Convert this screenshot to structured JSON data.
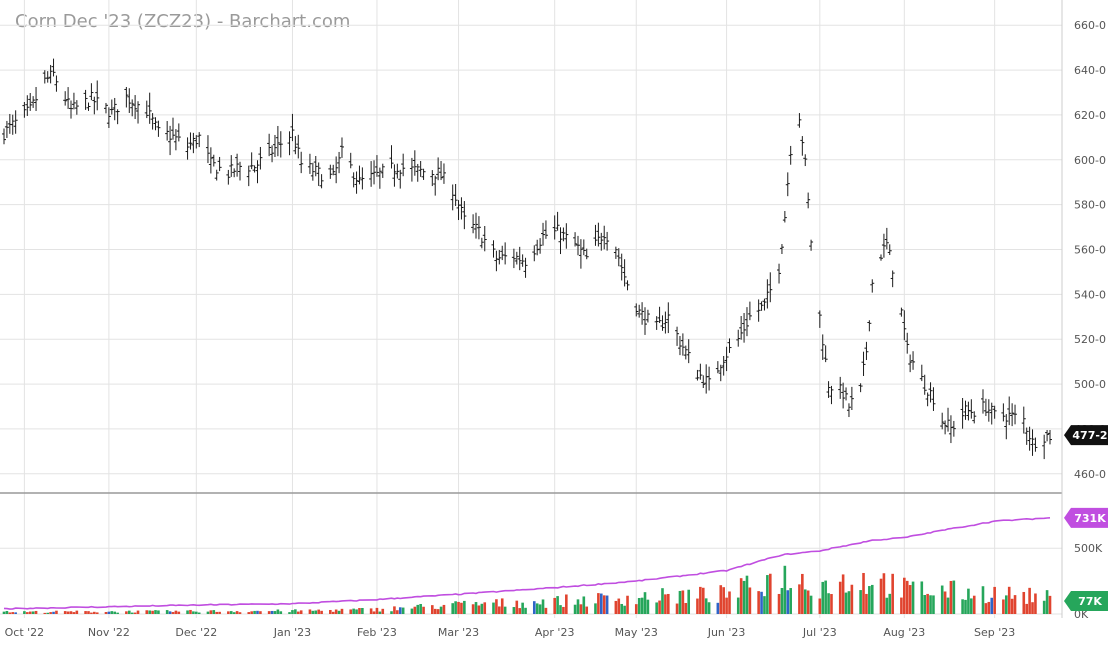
{
  "colors": {
    "price_bar": "#1a1a1a",
    "grid": "#e3e3e3",
    "pane_divider": "#999999",
    "volume_up": "#26a65b",
    "volume_down": "#e0442f",
    "volume_neutral": "#2f64c8",
    "open_interest": "#c04ee0",
    "last_price_badge": "#111111"
  },
  "chart_data": {
    "type": "ohlc",
    "title": "Corn Dec '23 (ZCZ23) - Barchart.com",
    "price_axis": {
      "range": [
        455,
        665
      ],
      "ticks": [
        {
          "value": 460,
          "label": "460-0"
        },
        {
          "value": 480,
          "label": "480-0"
        },
        {
          "value": 500,
          "label": "500-0"
        },
        {
          "value": 520,
          "label": "520-0"
        },
        {
          "value": 540,
          "label": "540-0"
        },
        {
          "value": 560,
          "label": "560-0"
        },
        {
          "value": 580,
          "label": "580-0"
        },
        {
          "value": 600,
          "label": "600-0"
        },
        {
          "value": 620,
          "label": "620-0"
        },
        {
          "value": 640,
          "label": "640-0"
        },
        {
          "value": 660,
          "label": "660-0"
        }
      ],
      "last_price": {
        "value": 477.25,
        "label": "477-2"
      }
    },
    "time_axis": {
      "first_date": "2022-09-26",
      "last_date": "2023-09-20",
      "months": [
        {
          "date": "2022-10-03",
          "label": "Oct '22"
        },
        {
          "date": "2022-11-01",
          "label": "Nov '22"
        },
        {
          "date": "2022-12-01",
          "label": "Dec '22"
        },
        {
          "date": "2023-01-03",
          "label": "Jan '23"
        },
        {
          "date": "2023-02-01",
          "label": "Feb '23"
        },
        {
          "date": "2023-03-01",
          "label": "Mar '23"
        },
        {
          "date": "2023-04-03",
          "label": "Apr '23"
        },
        {
          "date": "2023-05-01",
          "label": "May '23"
        },
        {
          "date": "2023-06-01",
          "label": "Jun '23"
        },
        {
          "date": "2023-07-03",
          "label": "Jul '23"
        },
        {
          "date": "2023-08-01",
          "label": "Aug '23"
        },
        {
          "date": "2023-09-01",
          "label": "Sep '23"
        }
      ]
    },
    "price_path": [
      [
        "2022-09-26",
        612
      ],
      [
        "2022-10-05",
        622
      ],
      [
        "2022-10-10",
        635
      ],
      [
        "2022-10-13",
        638
      ],
      [
        "2022-10-19",
        622
      ],
      [
        "2022-10-26",
        627
      ],
      [
        "2022-11-02",
        621
      ],
      [
        "2022-11-07",
        628
      ],
      [
        "2022-11-14",
        622
      ],
      [
        "2022-11-18",
        612
      ],
      [
        "2022-11-22",
        611
      ],
      [
        "2022-11-28",
        606
      ],
      [
        "2022-12-02",
        610
      ],
      [
        "2022-12-06",
        598
      ],
      [
        "2022-12-12",
        594
      ],
      [
        "2022-12-16",
        597
      ],
      [
        "2022-12-21",
        597
      ],
      [
        "2022-12-28",
        605
      ],
      [
        "2023-01-03",
        612
      ],
      [
        "2023-01-06",
        598
      ],
      [
        "2023-01-12",
        594
      ],
      [
        "2023-01-17",
        592
      ],
      [
        "2023-01-20",
        603
      ],
      [
        "2023-01-26",
        590
      ],
      [
        "2023-02-01",
        593
      ],
      [
        "2023-02-08",
        597
      ],
      [
        "2023-02-15",
        595
      ],
      [
        "2023-02-22",
        594
      ],
      [
        "2023-02-27",
        587
      ],
      [
        "2023-03-03",
        573
      ],
      [
        "2023-03-08",
        568
      ],
      [
        "2023-03-14",
        556
      ],
      [
        "2023-03-20",
        557
      ],
      [
        "2023-03-24",
        555
      ],
      [
        "2023-03-30",
        566
      ],
      [
        "2023-04-04",
        568
      ],
      [
        "2023-04-10",
        562
      ],
      [
        "2023-04-14",
        556
      ],
      [
        "2023-04-20",
        568
      ],
      [
        "2023-04-24",
        561
      ],
      [
        "2023-04-27",
        548
      ],
      [
        "2023-05-02",
        532
      ],
      [
        "2023-05-08",
        525
      ],
      [
        "2023-05-12",
        530
      ],
      [
        "2023-05-16",
        519
      ],
      [
        "2023-05-22",
        505
      ],
      [
        "2023-05-26",
        500
      ],
      [
        "2023-05-31",
        512
      ],
      [
        "2023-06-05",
        520
      ],
      [
        "2023-06-09",
        530
      ],
      [
        "2023-06-14",
        535
      ],
      [
        "2023-06-19",
        552
      ],
      [
        "2023-06-21",
        575
      ],
      [
        "2023-06-23",
        605
      ],
      [
        "2023-06-26",
        620
      ],
      [
        "2023-06-28",
        598
      ],
      [
        "2023-06-30",
        564
      ],
      [
        "2023-07-03",
        530
      ],
      [
        "2023-07-06",
        500
      ],
      [
        "2023-07-11",
        496
      ],
      [
        "2023-07-13",
        490
      ],
      [
        "2023-07-17",
        497
      ],
      [
        "2023-07-19",
        515
      ],
      [
        "2023-07-21",
        545
      ],
      [
        "2023-07-24",
        558
      ],
      [
        "2023-07-26",
        562
      ],
      [
        "2023-07-28",
        552
      ],
      [
        "2023-07-31",
        532
      ],
      [
        "2023-08-02",
        515
      ],
      [
        "2023-08-07",
        502
      ],
      [
        "2023-08-11",
        494
      ],
      [
        "2023-08-14",
        484
      ],
      [
        "2023-08-17",
        480
      ],
      [
        "2023-08-22",
        488
      ],
      [
        "2023-08-25",
        488
      ],
      [
        "2023-08-29",
        490
      ],
      [
        "2023-09-01",
        486
      ],
      [
        "2023-09-06",
        486
      ],
      [
        "2023-09-11",
        484
      ],
      [
        "2023-09-14",
        474
      ],
      [
        "2023-09-18",
        477
      ],
      [
        "2023-09-20",
        477
      ]
    ],
    "lower_pane": {
      "axis": {
        "ticks": [
          {
            "value": 500000,
            "label": "500K"
          },
          {
            "value": 0,
            "label": "0K"
          }
        ]
      },
      "open_interest": {
        "path": [
          [
            "2022-09-26",
            40000
          ],
          [
            "2022-11-01",
            55000
          ],
          [
            "2022-12-01",
            68000
          ],
          [
            "2023-01-03",
            78000
          ],
          [
            "2023-02-01",
            110000
          ],
          [
            "2023-03-01",
            150000
          ],
          [
            "2023-04-03",
            200000
          ],
          [
            "2023-05-01",
            250000
          ],
          [
            "2023-06-01",
            330000
          ],
          [
            "2023-06-20",
            450000
          ],
          [
            "2023-07-03",
            480000
          ],
          [
            "2023-07-21",
            560000
          ],
          [
            "2023-08-01",
            580000
          ],
          [
            "2023-08-15",
            640000
          ],
          [
            "2023-09-01",
            705000
          ],
          [
            "2023-09-20",
            731000
          ]
        ],
        "last": {
          "value": 731000,
          "label": "731K"
        }
      },
      "volume": {
        "path": [
          [
            "2022-09-26",
            10000
          ],
          [
            "2023-01-03",
            15000
          ],
          [
            "2023-02-01",
            22000
          ],
          [
            "2023-03-01",
            45000
          ],
          [
            "2023-04-03",
            60000
          ],
          [
            "2023-05-01",
            80000
          ],
          [
            "2023-06-01",
            95000
          ],
          [
            "2023-06-20",
            180000
          ],
          [
            "2023-07-03",
            140000
          ],
          [
            "2023-07-21",
            170000
          ],
          [
            "2023-08-01",
            120000
          ],
          [
            "2023-09-01",
            100000
          ],
          [
            "2023-09-20",
            77000
          ]
        ],
        "last": {
          "value": 77000,
          "label": "77K"
        }
      }
    }
  }
}
